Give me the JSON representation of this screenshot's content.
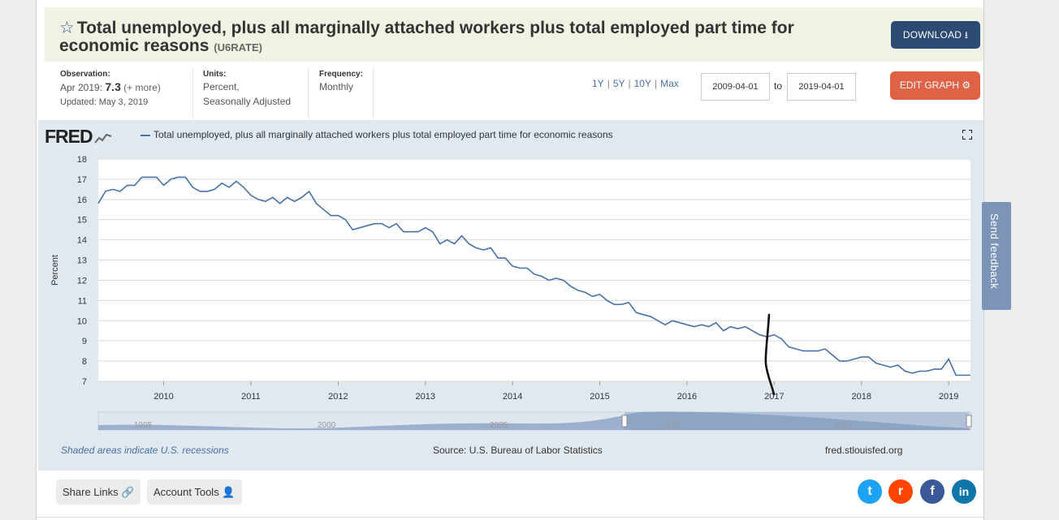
{
  "header": {
    "title": "Total unemployed, plus all marginally attached workers plus total employed part time for economic reasons",
    "series_id": "(U6RATE)",
    "download_label": "DOWNLOAD"
  },
  "meta": {
    "observation_label": "Observation:",
    "observation_date": "Apr 2019:",
    "observation_value": "7.3",
    "observation_more": "(+ more)",
    "updated": "Updated: May 3, 2019",
    "units_label": "Units:",
    "units_line1": "Percent,",
    "units_line2": "Seasonally Adjusted",
    "frequency_label": "Frequency:",
    "frequency_value": "Monthly"
  },
  "controls": {
    "ranges": [
      "1Y",
      "5Y",
      "10Y",
      "Max"
    ],
    "date_from": "2009-04-01",
    "to_label": "to",
    "date_to": "2019-04-01",
    "edit_label": "EDIT GRAPH"
  },
  "graph": {
    "logo": "FRED",
    "legend": "Total unemployed, plus all marginally attached workers plus total employed part time for economic reasons",
    "recession_note": "Shaded areas indicate U.S. recessions",
    "source": "Source: U.S. Bureau of Labor Statistics",
    "site": "fred.stlouisfed.org"
  },
  "chart_data": {
    "type": "line",
    "title": "Total unemployed, plus all marginally attached workers plus total employed part time for economic reasons",
    "xlabel": "",
    "ylabel": "Percent",
    "xlim": [
      2009.25,
      2019.25
    ],
    "ylim": [
      7,
      18
    ],
    "x_ticks": [
      "2010",
      "2011",
      "2012",
      "2013",
      "2014",
      "2015",
      "2016",
      "2017",
      "2018",
      "2019"
    ],
    "y_ticks": [
      "7",
      "8",
      "9",
      "10",
      "11",
      "12",
      "13",
      "14",
      "15",
      "16",
      "17",
      "18"
    ],
    "series": [
      {
        "name": "U6RATE",
        "color": "#4572a7",
        "start": "2009-04",
        "values": [
          15.8,
          16.4,
          16.5,
          16.4,
          16.7,
          16.7,
          17.1,
          17.1,
          17.1,
          16.7,
          17.0,
          17.1,
          17.1,
          16.6,
          16.4,
          16.4,
          16.5,
          16.8,
          16.6,
          16.9,
          16.6,
          16.2,
          16.0,
          15.9,
          16.1,
          15.8,
          16.1,
          15.9,
          16.1,
          16.4,
          15.8,
          15.5,
          15.2,
          15.2,
          15.0,
          14.5,
          14.6,
          14.7,
          14.8,
          14.8,
          14.6,
          14.8,
          14.4,
          14.4,
          14.4,
          14.6,
          14.4,
          13.8,
          14.0,
          13.8,
          14.2,
          13.8,
          13.6,
          13.5,
          13.6,
          13.1,
          13.1,
          12.7,
          12.6,
          12.6,
          12.3,
          12.2,
          12.0,
          12.1,
          12.0,
          11.7,
          11.5,
          11.4,
          11.2,
          11.3,
          11.0,
          10.8,
          10.8,
          10.9,
          10.4,
          10.3,
          10.2,
          10.0,
          9.8,
          10.0,
          9.9,
          9.8,
          9.7,
          9.8,
          9.7,
          9.9,
          9.5,
          9.7,
          9.6,
          9.7,
          9.5,
          9.3,
          9.2,
          9.3,
          9.1,
          8.7,
          8.6,
          8.5,
          8.5,
          8.5,
          8.6,
          8.3,
          8.0,
          8.0,
          8.1,
          8.2,
          8.2,
          7.9,
          7.8,
          7.7,
          7.8,
          7.5,
          7.4,
          7.5,
          7.5,
          7.6,
          7.6,
          8.1,
          7.3,
          7.3,
          7.3
        ]
      }
    ],
    "navigator_labels": [
      "1995",
      "2000",
      "2005",
      "2010",
      "2015"
    ]
  },
  "feedback_label": "Send feedback",
  "footer": {
    "share_label": "Share Links",
    "account_label": "Account Tools"
  },
  "social": {
    "twitter": "t",
    "reddit": "r",
    "facebook": "f",
    "linkedin": "in"
  },
  "colors": {
    "title_bg": "#f0f3e4",
    "download": "#2d4a73",
    "edit": "#e06246",
    "panel": "#e1e9f0",
    "line": "#4572a7",
    "twitter": "#1da1f2",
    "reddit": "#ff4500",
    "facebook": "#3b5998",
    "linkedin": "#0e76a8"
  }
}
